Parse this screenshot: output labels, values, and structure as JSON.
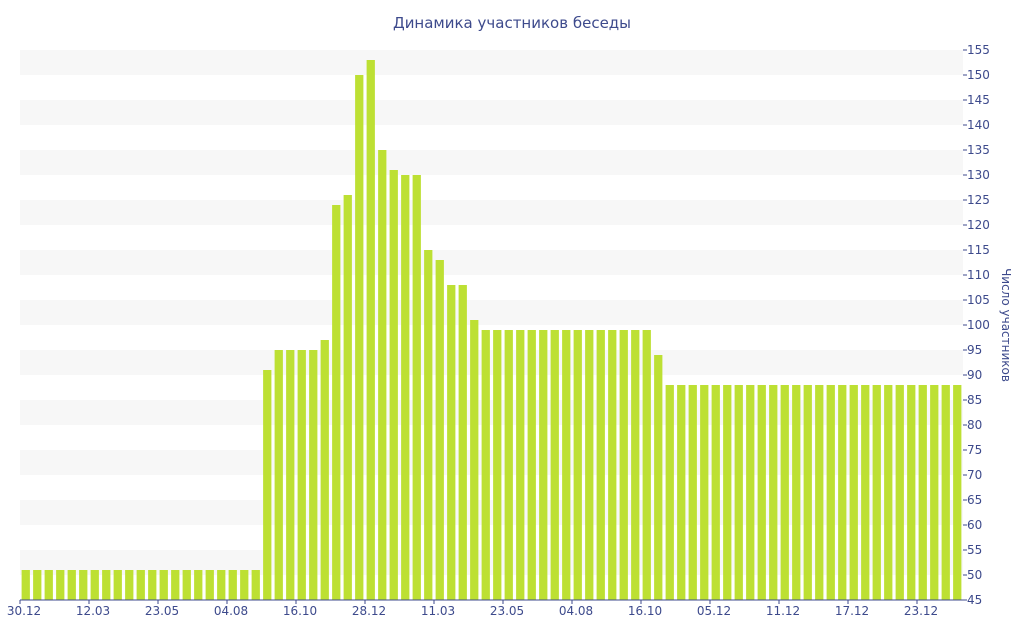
{
  "chart_data": {
    "type": "bar",
    "title": "Динамика участников беседы",
    "xlabel": "",
    "ylabel": "Число участников",
    "ylim": [
      45,
      155
    ],
    "ystep": 5,
    "grid": true,
    "bar_color": "#bde033",
    "band_color": "#f7f7f7",
    "text_color": "#3d4a8c",
    "x_tick_labels": [
      "30.12",
      "12.03",
      "23.05",
      "04.08",
      "16.10",
      "28.12",
      "11.03",
      "23.05",
      "04.08",
      "16.10",
      "05.12",
      "11.12",
      "17.12",
      "23.12"
    ],
    "x_tick_bar_index": [
      0,
      6,
      12,
      18,
      24,
      30,
      36,
      42,
      48,
      54,
      60,
      66,
      72,
      78
    ],
    "values": [
      51,
      51,
      51,
      51,
      51,
      51,
      51,
      51,
      51,
      51,
      51,
      51,
      51,
      51,
      51,
      51,
      51,
      51,
      51,
      51,
      51,
      91,
      95,
      95,
      95,
      95,
      97,
      124,
      126,
      150,
      153,
      135,
      131,
      130,
      130,
      115,
      113,
      108,
      108,
      101,
      99,
      99,
      99,
      99,
      99,
      99,
      99,
      99,
      99,
      99,
      99,
      99,
      99,
      99,
      99,
      94,
      88,
      88,
      88,
      88,
      88,
      88,
      88,
      88,
      88,
      88,
      88,
      88,
      88,
      88,
      88,
      88,
      88,
      88,
      88,
      88,
      88,
      88,
      88,
      88,
      88,
      88
    ]
  }
}
